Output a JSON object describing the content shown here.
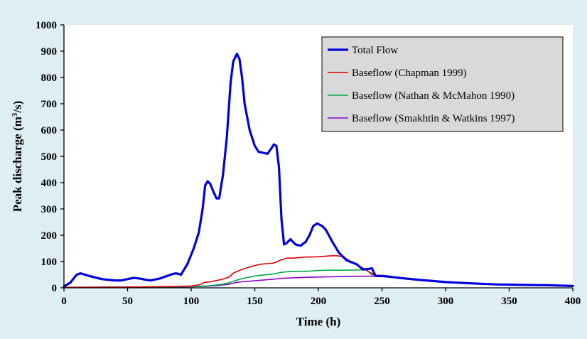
{
  "chart_data": {
    "type": "line",
    "xlabel": "Time (h)",
    "ylabel_main": "Peak discharge (m",
    "ylabel_sup": "3",
    "ylabel_end": "/s)",
    "xlim": [
      0,
      400
    ],
    "ylim": [
      0,
      1000
    ],
    "xticks": [
      0,
      50,
      100,
      150,
      200,
      250,
      300,
      350,
      400
    ],
    "yticks": [
      0,
      100,
      200,
      300,
      400,
      500,
      600,
      700,
      800,
      900,
      1000
    ],
    "grid": false,
    "legend_position": "top-right",
    "series": [
      {
        "name": "Total Flow",
        "color": "#0000dd",
        "values": [
          [
            0,
            5
          ],
          [
            5,
            20
          ],
          [
            10,
            50
          ],
          [
            13,
            55
          ],
          [
            20,
            45
          ],
          [
            30,
            33
          ],
          [
            40,
            28
          ],
          [
            45,
            28
          ],
          [
            55,
            38
          ],
          [
            60,
            35
          ],
          [
            65,
            30
          ],
          [
            68,
            28
          ],
          [
            75,
            35
          ],
          [
            85,
            52
          ],
          [
            88,
            55
          ],
          [
            92,
            50
          ],
          [
            97,
            90
          ],
          [
            102,
            150
          ],
          [
            106,
            210
          ],
          [
            109,
            300
          ],
          [
            111,
            390
          ],
          [
            113,
            405
          ],
          [
            115,
            395
          ],
          [
            118,
            360
          ],
          [
            120,
            340
          ],
          [
            122,
            340
          ],
          [
            125,
            430
          ],
          [
            128,
            570
          ],
          [
            131,
            780
          ],
          [
            133,
            860
          ],
          [
            135,
            880
          ],
          [
            136,
            890
          ],
          [
            138,
            870
          ],
          [
            140,
            800
          ],
          [
            142,
            700
          ],
          [
            146,
            600
          ],
          [
            150,
            540
          ],
          [
            153,
            517
          ],
          [
            157,
            513
          ],
          [
            160,
            510
          ],
          [
            163,
            530
          ],
          [
            165,
            545
          ],
          [
            167,
            540
          ],
          [
            169,
            460
          ],
          [
            171,
            260
          ],
          [
            173,
            165
          ],
          [
            175,
            170
          ],
          [
            178,
            185
          ],
          [
            182,
            165
          ],
          [
            186,
            160
          ],
          [
            190,
            175
          ],
          [
            193,
            200
          ],
          [
            196,
            235
          ],
          [
            199,
            245
          ],
          [
            203,
            235
          ],
          [
            206,
            220
          ],
          [
            211,
            175
          ],
          [
            216,
            135
          ],
          [
            222,
            105
          ],
          [
            230,
            90
          ],
          [
            235,
            70
          ],
          [
            240,
            72
          ],
          [
            242,
            75
          ],
          [
            245,
            45
          ],
          [
            250,
            45
          ],
          [
            255,
            43
          ],
          [
            265,
            37
          ],
          [
            280,
            30
          ],
          [
            300,
            22
          ],
          [
            320,
            17
          ],
          [
            340,
            13
          ],
          [
            360,
            11
          ],
          [
            380,
            10
          ],
          [
            400,
            7
          ]
        ]
      },
      {
        "name": "Baseflow (Chapman 1999)",
        "color": "#e00000",
        "values": [
          [
            0,
            2
          ],
          [
            50,
            3
          ],
          [
            90,
            5
          ],
          [
            100,
            7
          ],
          [
            107,
            12
          ],
          [
            110,
            20
          ],
          [
            115,
            23
          ],
          [
            120,
            28
          ],
          [
            125,
            33
          ],
          [
            130,
            42
          ],
          [
            133,
            55
          ],
          [
            135,
            60
          ],
          [
            140,
            70
          ],
          [
            145,
            78
          ],
          [
            150,
            85
          ],
          [
            155,
            90
          ],
          [
            160,
            92
          ],
          [
            165,
            94
          ],
          [
            170,
            105
          ],
          [
            175,
            113
          ],
          [
            180,
            113
          ],
          [
            185,
            115
          ],
          [
            190,
            117
          ],
          [
            200,
            118
          ],
          [
            205,
            120
          ],
          [
            210,
            122
          ],
          [
            215,
            122
          ],
          [
            220,
            118
          ],
          [
            225,
            100
          ],
          [
            230,
            88
          ],
          [
            235,
            75
          ],
          [
            240,
            60
          ],
          [
            245,
            48
          ],
          [
            250,
            47
          ],
          [
            260,
            40
          ],
          [
            280,
            30
          ],
          [
            300,
            22
          ],
          [
            320,
            17
          ],
          [
            340,
            13
          ],
          [
            360,
            11
          ],
          [
            380,
            10
          ],
          [
            400,
            7
          ]
        ]
      },
      {
        "name": "Baseflow (Nathan & McMahon 1990)",
        "color": "#00aa44",
        "values": [
          [
            0,
            2
          ],
          [
            50,
            3
          ],
          [
            90,
            4
          ],
          [
            105,
            5
          ],
          [
            115,
            8
          ],
          [
            125,
            14
          ],
          [
            130,
            20
          ],
          [
            135,
            28
          ],
          [
            140,
            35
          ],
          [
            145,
            40
          ],
          [
            150,
            45
          ],
          [
            155,
            48
          ],
          [
            160,
            50
          ],
          [
            165,
            53
          ],
          [
            170,
            58
          ],
          [
            175,
            61
          ],
          [
            180,
            62
          ],
          [
            185,
            63
          ],
          [
            190,
            63
          ],
          [
            195,
            64
          ],
          [
            200,
            66
          ],
          [
            210,
            67
          ],
          [
            220,
            67
          ],
          [
            230,
            68
          ],
          [
            238,
            68
          ],
          [
            242,
            50
          ],
          [
            245,
            48
          ],
          [
            250,
            46
          ],
          [
            260,
            40
          ],
          [
            280,
            30
          ],
          [
            300,
            22
          ],
          [
            320,
            17
          ],
          [
            340,
            13
          ],
          [
            360,
            11
          ],
          [
            380,
            10
          ],
          [
            400,
            7
          ]
        ]
      },
      {
        "name": "Baseflow (Smakhtin & Watkins 1997)",
        "color": "#8800cc",
        "values": [
          [
            0,
            2
          ],
          [
            50,
            3
          ],
          [
            90,
            3
          ],
          [
            110,
            5
          ],
          [
            120,
            8
          ],
          [
            125,
            11
          ],
          [
            130,
            14
          ],
          [
            135,
            20
          ],
          [
            140,
            23
          ],
          [
            145,
            25
          ],
          [
            150,
            27
          ],
          [
            155,
            29
          ],
          [
            160,
            31
          ],
          [
            165,
            33
          ],
          [
            170,
            36
          ],
          [
            175,
            37
          ],
          [
            180,
            38
          ],
          [
            185,
            39
          ],
          [
            190,
            40
          ],
          [
            200,
            41
          ],
          [
            210,
            42
          ],
          [
            220,
            43
          ],
          [
            230,
            44
          ],
          [
            240,
            44
          ],
          [
            245,
            45
          ],
          [
            250,
            46
          ],
          [
            260,
            40
          ],
          [
            280,
            30
          ],
          [
            300,
            22
          ],
          [
            320,
            17
          ],
          [
            340,
            13
          ],
          [
            360,
            11
          ],
          [
            380,
            10
          ],
          [
            400,
            7
          ]
        ]
      }
    ]
  }
}
